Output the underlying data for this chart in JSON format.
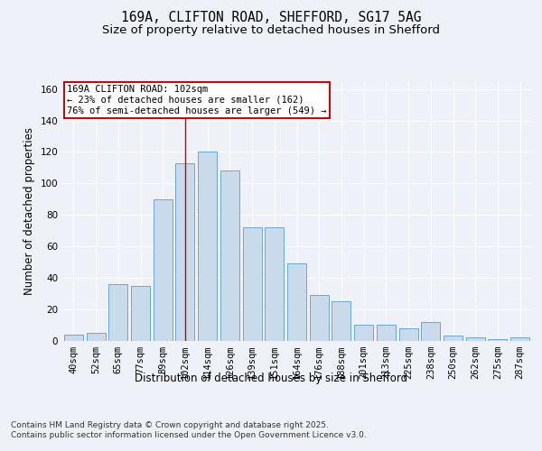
{
  "title_line1": "169A, CLIFTON ROAD, SHEFFORD, SG17 5AG",
  "title_line2": "Size of property relative to detached houses in Shefford",
  "xlabel": "Distribution of detached houses by size in Shefford",
  "ylabel": "Number of detached properties",
  "bar_labels": [
    "40sqm",
    "52sqm",
    "65sqm",
    "77sqm",
    "89sqm",
    "102sqm",
    "114sqm",
    "126sqm",
    "139sqm",
    "151sqm",
    "164sqm",
    "176sqm",
    "188sqm",
    "201sqm",
    "213sqm",
    "225sqm",
    "238sqm",
    "250sqm",
    "262sqm",
    "275sqm",
    "287sqm"
  ],
  "bar_values": [
    4,
    5,
    36,
    35,
    90,
    113,
    120,
    108,
    72,
    72,
    49,
    29,
    25,
    10,
    10,
    8,
    12,
    3,
    2,
    1,
    2
  ],
  "bar_color": "#c9daea",
  "bar_edge_color": "#5b9bd5",
  "reference_line_x": 5,
  "annotation_text": "169A CLIFTON ROAD: 102sqm\n← 23% of detached houses are smaller (162)\n76% of semi-detached houses are larger (549) →",
  "annotation_box_color": "#ffffff",
  "annotation_box_edge": "#cc0000",
  "ylim": [
    0,
    165
  ],
  "yticks": [
    0,
    20,
    40,
    60,
    80,
    100,
    120,
    140,
    160
  ],
  "background_color": "#eef2f8",
  "footer_text": "Contains HM Land Registry data © Crown copyright and database right 2025.\nContains public sector information licensed under the Open Government Licence v3.0.",
  "grid_color": "#ffffff",
  "title_fontsize": 10.5,
  "subtitle_fontsize": 9.5,
  "axis_label_fontsize": 8.5,
  "tick_fontsize": 7.5,
  "annotation_fontsize": 7.5,
  "footer_fontsize": 6.5
}
